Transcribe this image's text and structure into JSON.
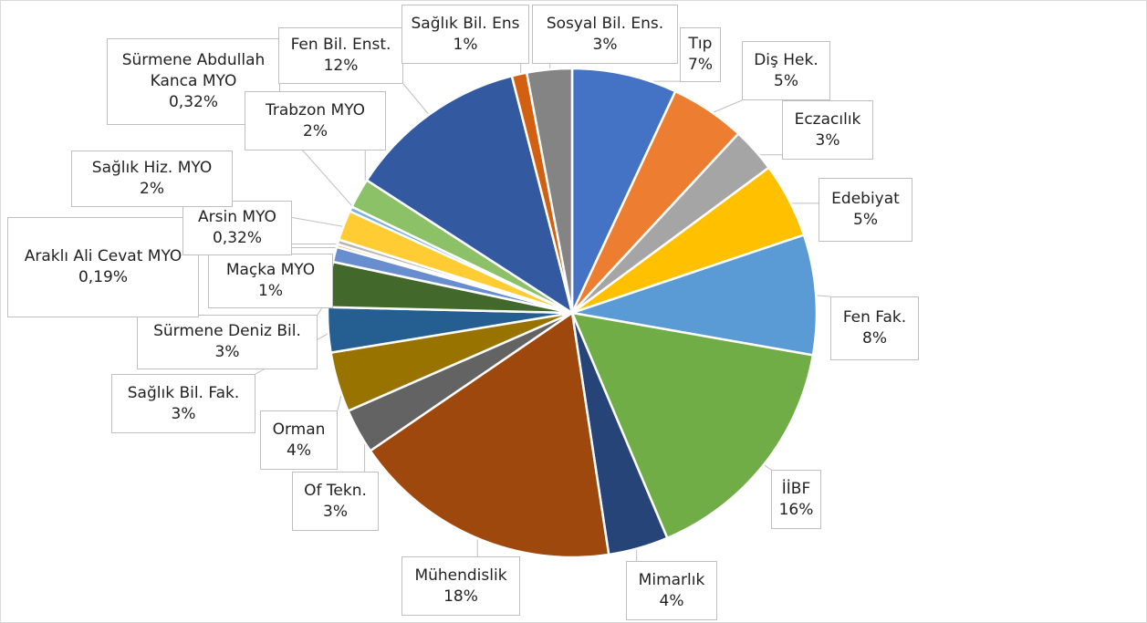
{
  "chart_data": {
    "type": "pie",
    "categories": [
      "Tıp",
      "Diş Hek.",
      "Eczacılık",
      "Edebiyat",
      "Fen Fak.",
      "İİBF",
      "Mimarlık",
      "Mühendislik",
      "Of Tekn.",
      "Orman",
      "Sağlık Bil. Fak.",
      "Sürmene Deniz Bil.",
      "Maçka MYO",
      "Araklı Ali Cevat MYO",
      "Arsin MYO",
      "Sağlık Hiz. MYO",
      "Sürmene Abdullah Kanca MYO",
      "Trabzon MYO",
      "Fen Bil. Enst.",
      "Sağlık Bil. Ens",
      "Sosyal Bil. Ens."
    ],
    "values": [
      7,
      5,
      3,
      5,
      8,
      16,
      4,
      18,
      3,
      4,
      3,
      3,
      1,
      0.19,
      0.32,
      2,
      0.32,
      2,
      12,
      1,
      3
    ],
    "value_labels": [
      "7%",
      "5%",
      "3%",
      "5%",
      "8%",
      "16%",
      "4%",
      "18%",
      "3%",
      "4%",
      "3%",
      "3%",
      "1%",
      "0,19%",
      "0,32%",
      "2%",
      "0,32%",
      "2%",
      "12%",
      "1%",
      "3%"
    ],
    "colors": [
      "#4472c4",
      "#ed7d31",
      "#a5a5a5",
      "#ffc000",
      "#5b9bd5",
      "#70ad47",
      "#264478",
      "#9e480e",
      "#636363",
      "#997300",
      "#255e91",
      "#43682b",
      "#698ed0",
      "#f1975a",
      "#b7b7b7",
      "#ffcd33",
      "#7cafdd",
      "#8cc168",
      "#335aa1",
      "#d26012",
      "#848484"
    ]
  }
}
